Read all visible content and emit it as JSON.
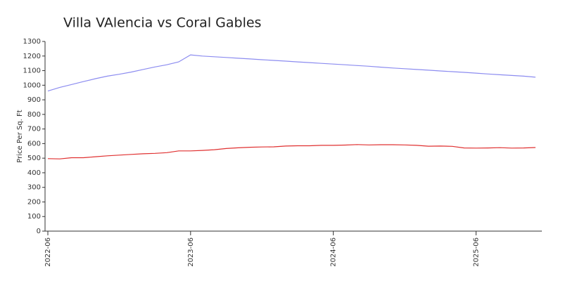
{
  "chart_data": {
    "type": "line",
    "title": "Villa VAlencia vs Coral Gables",
    "y_label": "Price Per Sq. Ft",
    "x": [
      "2022-06",
      "2022-07",
      "2022-08",
      "2022-09",
      "2022-10",
      "2022-11",
      "2022-12",
      "2023-01",
      "2023-02",
      "2023-03",
      "2023-04",
      "2023-05",
      "2023-06",
      "2023-07",
      "2023-08",
      "2023-09",
      "2023-10",
      "2023-11",
      "2023-12",
      "2024-01",
      "2024-02",
      "2024-03",
      "2024-04",
      "2024-05",
      "2024-06",
      "2024-07",
      "2024-08",
      "2024-09",
      "2024-10",
      "2024-11",
      "2024-12",
      "2025-01",
      "2025-02",
      "2025-03",
      "2025-04",
      "2025-05",
      "2025-06",
      "2025-07",
      "2025-08",
      "2025-09",
      "2025-10",
      "2025-11"
    ],
    "series": [
      {
        "color": "#8c8cf0",
        "values": [
          960,
          985,
          1005,
          1025,
          1045,
          1062,
          1075,
          1090,
          1108,
          1125,
          1140,
          1160,
          1208,
          1200,
          1195,
          1190,
          1185,
          1180,
          1175,
          1170,
          1165,
          1160,
          1155,
          1150,
          1145,
          1140,
          1135,
          1130,
          1124,
          1118,
          1113,
          1108,
          1103,
          1098,
          1093,
          1088,
          1083,
          1077,
          1072,
          1067,
          1062,
          1055
        ]
      },
      {
        "color": "#e03030",
        "values": [
          497,
          495,
          503,
          503,
          510,
          516,
          521,
          526,
          530,
          533,
          538,
          550,
          550,
          553,
          558,
          566,
          571,
          575,
          577,
          578,
          583,
          585,
          585,
          588,
          588,
          590,
          593,
          591,
          592,
          592,
          591,
          588,
          582,
          583,
          581,
          570,
          569,
          570,
          572,
          569,
          570,
          573
        ]
      }
    ],
    "xticks": [
      "2022-06",
      "2023-06",
      "2024-06",
      "2025-06"
    ],
    "ylim": [
      0,
      1300
    ],
    "yticks": [
      0,
      100,
      200,
      300,
      400,
      500,
      600,
      700,
      800,
      900,
      1000,
      1100,
      1200,
      1300
    ]
  }
}
